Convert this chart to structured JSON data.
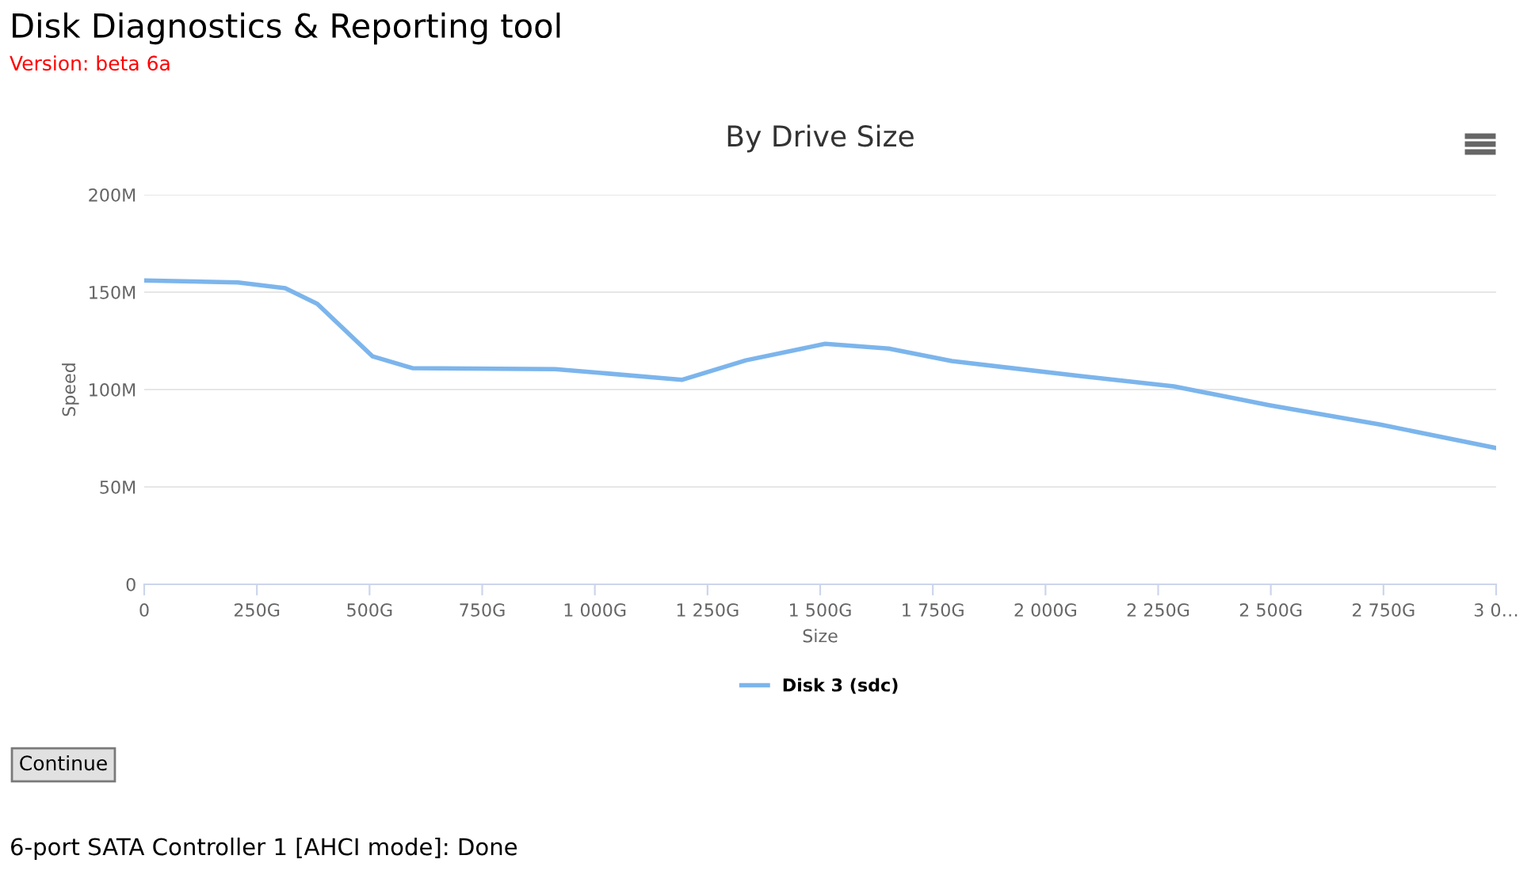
{
  "chart_data": {
    "type": "line",
    "title": "By Drive Size",
    "xlabel": "Size",
    "ylabel": "Speed",
    "x": [
      0,
      208,
      313,
      384,
      507,
      595,
      912,
      1194,
      1335,
      1511,
      1652,
      1792,
      2074,
      2285,
      2496,
      2743,
      3000
    ],
    "series": [
      {
        "name": "Disk 3 (sdc)",
        "color": "#7cb5ec",
        "values": [
          156,
          155,
          152,
          144,
          117,
          111,
          110.5,
          105,
          115,
          123.5,
          121,
          114.6,
          107,
          101.6,
          92,
          82,
          70
        ]
      }
    ],
    "xlim": [
      0,
      3000
    ],
    "ylim": [
      0,
      200
    ],
    "xticks": [
      0,
      {
        "value": 250,
        "label": "250G"
      },
      {
        "value": 500,
        "label": "500G"
      },
      {
        "value": 750,
        "label": "750G"
      },
      {
        "value": 1000,
        "label": "1 000G"
      },
      {
        "value": 1250,
        "label": "1 250G"
      },
      {
        "value": 1500,
        "label": "1 500G"
      },
      {
        "value": 1750,
        "label": "1 750G"
      },
      {
        "value": 2000,
        "label": "2 000G"
      },
      {
        "value": 2250,
        "label": "2 250G"
      },
      {
        "value": 2500,
        "label": "2 500G"
      },
      {
        "value": 2750,
        "label": "2 750G"
      },
      {
        "value": 3000,
        "label": "3 0…"
      }
    ],
    "yticks": [
      0,
      {
        "value": 50,
        "label": "50M"
      },
      {
        "value": 100,
        "label": "100M"
      },
      {
        "value": 150,
        "label": "150M"
      },
      {
        "value": 200,
        "label": "200M"
      }
    ],
    "grid": "y",
    "legend": "bottom",
    "marker": "none",
    "line_style": "solid",
    "annotations": [
      "Disk Diagnostics & Reporting tool",
      "Version: beta 6a",
      "Continue",
      "6-port SATA Controller 1 [AHCI mode]: Done"
    ]
  }
}
